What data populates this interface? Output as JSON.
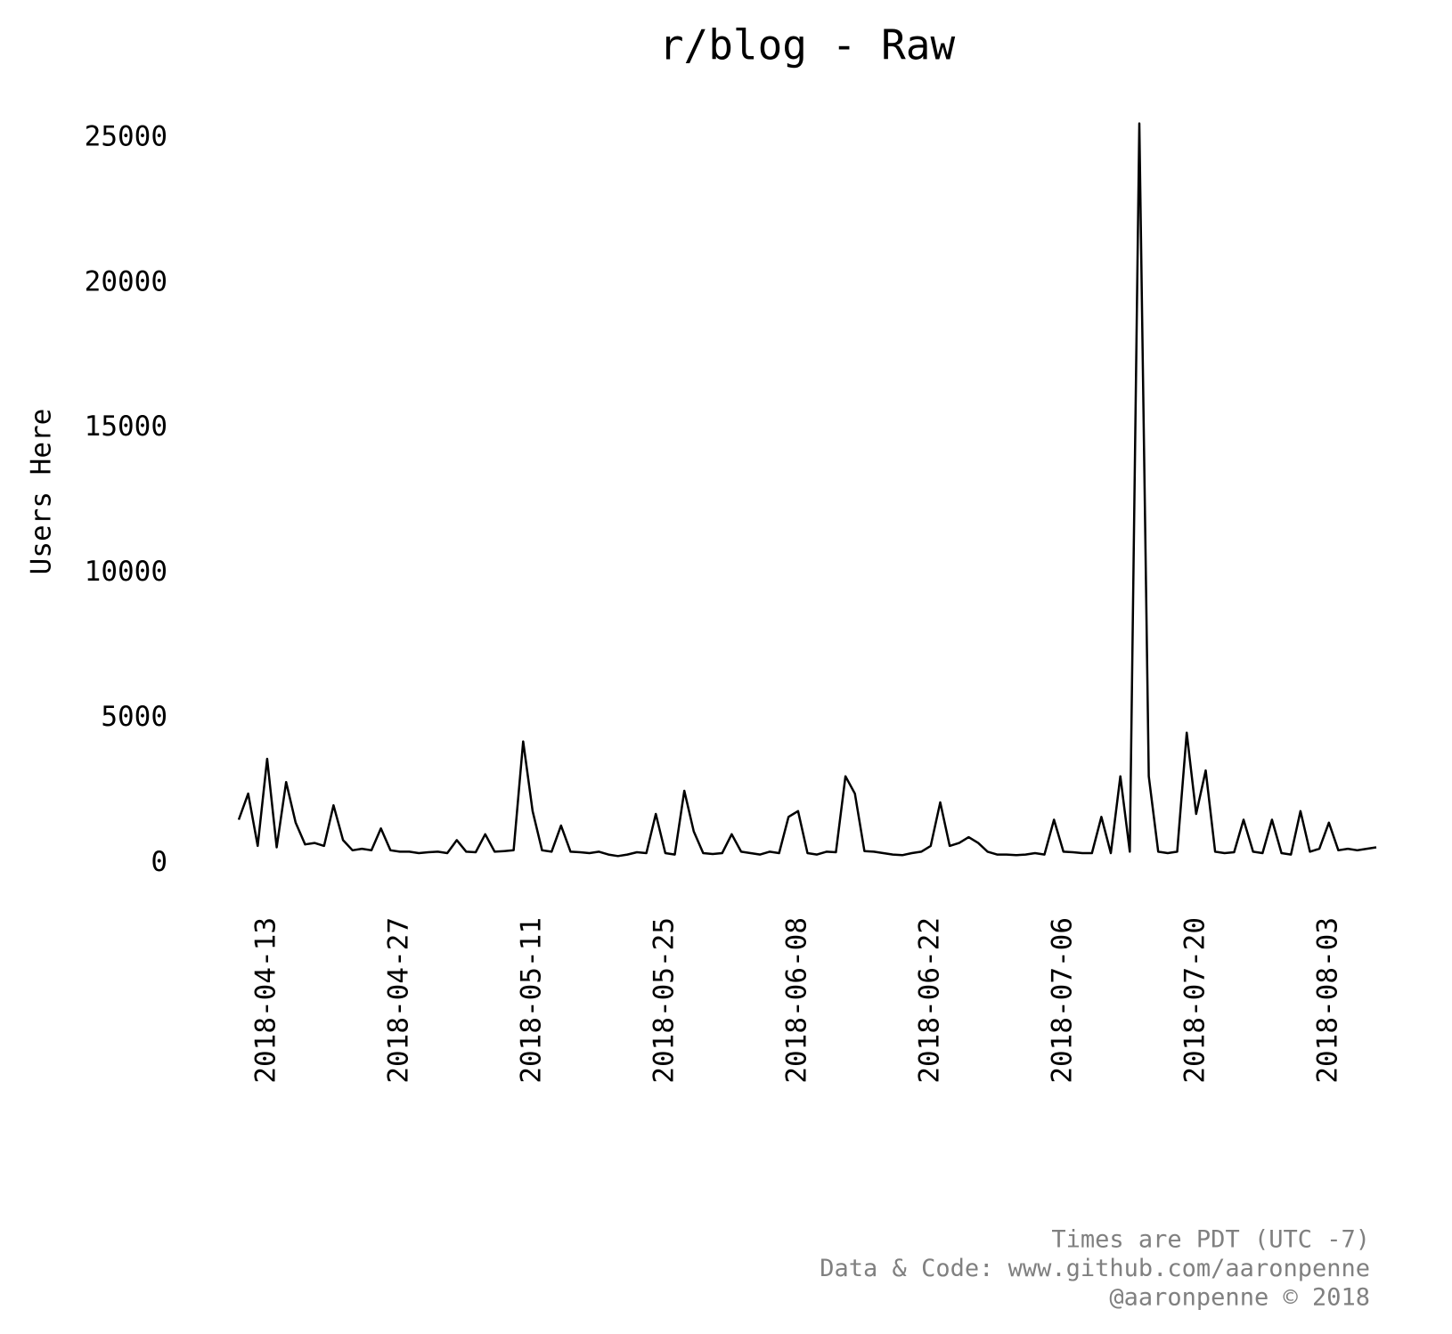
{
  "chart_data": {
    "type": "line",
    "title": "r/blog - Raw",
    "ylabel": "Users Here",
    "annotations": [
      "Times are PDT (UTC -7)",
      "Data & Code: www.github.com/aaronpenne",
      "@aaronpenne © 2018"
    ],
    "color": "#000000",
    "x": [
      "2018-04-10",
      "2018-04-11",
      "2018-04-12",
      "2018-04-13",
      "2018-04-14",
      "2018-04-15",
      "2018-04-16",
      "2018-04-17",
      "2018-04-18",
      "2018-04-19",
      "2018-04-20",
      "2018-04-21",
      "2018-04-22",
      "2018-04-23",
      "2018-04-24",
      "2018-04-25",
      "2018-04-26",
      "2018-04-27",
      "2018-04-28",
      "2018-04-29",
      "2018-04-30",
      "2018-05-01",
      "2018-05-02",
      "2018-05-03",
      "2018-05-04",
      "2018-05-05",
      "2018-05-06",
      "2018-05-07",
      "2018-05-08",
      "2018-05-09",
      "2018-05-10",
      "2018-05-11",
      "2018-05-12",
      "2018-05-13",
      "2018-05-14",
      "2018-05-15",
      "2018-05-16",
      "2018-05-17",
      "2018-05-18",
      "2018-05-19",
      "2018-05-20",
      "2018-05-21",
      "2018-05-22",
      "2018-05-23",
      "2018-05-24",
      "2018-05-25",
      "2018-05-26",
      "2018-05-27",
      "2018-05-28",
      "2018-05-29",
      "2018-05-30",
      "2018-05-31",
      "2018-06-01",
      "2018-06-02",
      "2018-06-03",
      "2018-06-04",
      "2018-06-05",
      "2018-06-06",
      "2018-06-07",
      "2018-06-08",
      "2018-06-09",
      "2018-06-10",
      "2018-06-11",
      "2018-06-12",
      "2018-06-13",
      "2018-06-14",
      "2018-06-15",
      "2018-06-16",
      "2018-06-17",
      "2018-06-18",
      "2018-06-19",
      "2018-06-20",
      "2018-06-21",
      "2018-06-22",
      "2018-06-23",
      "2018-06-24",
      "2018-06-25",
      "2018-06-26",
      "2018-06-27",
      "2018-06-28",
      "2018-06-29",
      "2018-06-30",
      "2018-07-01",
      "2018-07-02",
      "2018-07-03",
      "2018-07-04",
      "2018-07-05",
      "2018-07-06",
      "2018-07-07",
      "2018-07-08",
      "2018-07-09",
      "2018-07-10",
      "2018-07-11",
      "2018-07-12",
      "2018-07-13",
      "2018-07-14",
      "2018-07-15",
      "2018-07-16",
      "2018-07-17",
      "2018-07-18",
      "2018-07-19",
      "2018-07-20",
      "2018-07-21",
      "2018-07-22",
      "2018-07-23",
      "2018-07-24",
      "2018-07-25",
      "2018-07-26",
      "2018-07-27",
      "2018-07-28",
      "2018-07-29",
      "2018-07-30",
      "2018-07-31",
      "2018-08-01",
      "2018-08-02",
      "2018-08-03",
      "2018-08-04",
      "2018-08-05",
      "2018-08-06",
      "2018-08-07",
      "2018-08-08"
    ],
    "values": [
      1500,
      2400,
      600,
      3600,
      550,
      2800,
      1400,
      650,
      700,
      600,
      2000,
      800,
      450,
      500,
      450,
      1200,
      450,
      400,
      400,
      350,
      380,
      400,
      350,
      800,
      400,
      380,
      1000,
      400,
      420,
      450,
      4200,
      1800,
      450,
      400,
      1300,
      400,
      380,
      350,
      400,
      300,
      250,
      300,
      380,
      350,
      1700,
      350,
      300,
      2500,
      1100,
      350,
      320,
      350,
      1000,
      400,
      350,
      300,
      400,
      350,
      1600,
      1800,
      350,
      300,
      400,
      380,
      3000,
      2400,
      420,
      400,
      350,
      300,
      280,
      350,
      400,
      600,
      2100,
      600,
      700,
      900,
      700,
      400,
      300,
      300,
      280,
      300,
      350,
      300,
      1500,
      400,
      380,
      350,
      350,
      1600,
      350,
      3000,
      400,
      25500,
      3000,
      400,
      350,
      400,
      4500,
      1700,
      3200,
      400,
      350,
      380,
      1500,
      400,
      350,
      1500,
      350,
      300,
      1800,
      400,
      500,
      1400,
      450,
      500,
      450,
      500,
      550
    ],
    "xlim": [
      "2018-04-10",
      "2018-08-08"
    ],
    "xticks": [
      "2018-04-13",
      "2018-04-27",
      "2018-05-11",
      "2018-05-25",
      "2018-06-08",
      "2018-06-22",
      "2018-07-06",
      "2018-07-20",
      "2018-08-03"
    ],
    "ylim": [
      -1000,
      26500
    ],
    "yticks": [
      0,
      5000,
      10000,
      15000,
      20000,
      25000
    ]
  }
}
